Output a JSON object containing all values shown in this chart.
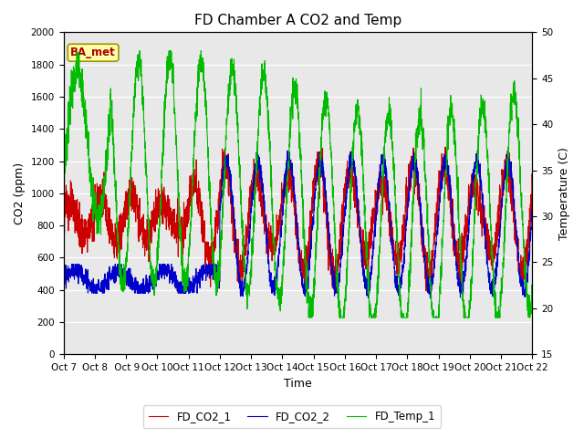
{
  "title": "FD Chamber A CO2 and Temp",
  "xlabel": "Time",
  "ylabel_left": "CO2 (ppm)",
  "ylabel_right": "Temperature (C)",
  "xlim": [
    0,
    15
  ],
  "ylim_left": [
    0,
    2000
  ],
  "ylim_right": [
    15,
    50
  ],
  "yticks_left": [
    0,
    200,
    400,
    600,
    800,
    1000,
    1200,
    1400,
    1600,
    1800,
    2000
  ],
  "yticks_right": [
    15,
    20,
    25,
    30,
    35,
    40,
    45,
    50
  ],
  "xtick_labels": [
    "Oct 7",
    "Oct 8",
    " Oct 9",
    "Oct 10",
    "Oct 11",
    "Oct 12",
    "Oct 13",
    "Oct 14",
    "Oct 15",
    "Oct 16",
    "Oct 17",
    "Oct 18",
    "Oct 19",
    "Oct 20",
    "Oct 21",
    "Oct 22"
  ],
  "xtick_positions": [
    0,
    1,
    2,
    3,
    4,
    5,
    6,
    7,
    8,
    9,
    10,
    11,
    12,
    13,
    14,
    15
  ],
  "color_co2_1": "#cc0000",
  "color_co2_2": "#0000cc",
  "color_temp": "#00bb00",
  "label_co2_1": "FD_CO2_1",
  "label_co2_2": "FD_CO2_2",
  "label_temp": "FD_Temp_1",
  "annotation_text": "BA_met",
  "background_color": "#e8e8e8",
  "grid_color": "#ffffff",
  "linewidth": 0.8,
  "title_fontsize": 11,
  "axis_fontsize": 9,
  "tick_fontsize": 7.5
}
